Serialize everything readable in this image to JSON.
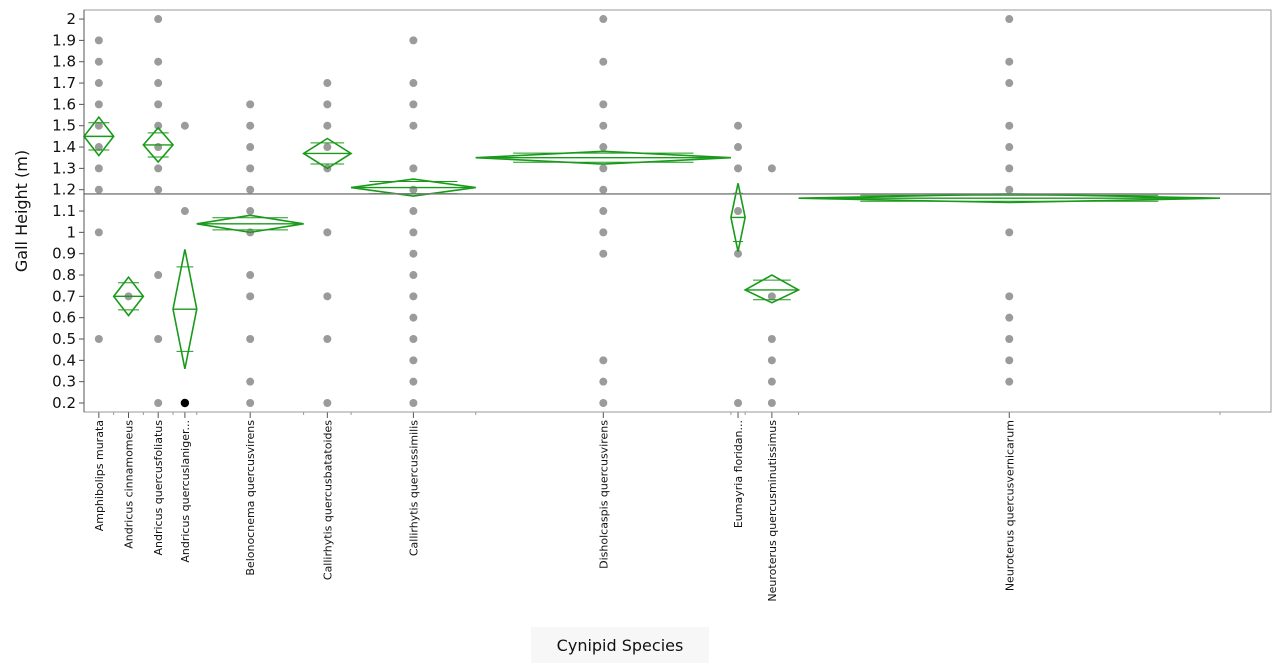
{
  "colors": {
    "diamond": "#1a9a1a",
    "point": "#9b9b9b",
    "highlight_point": "#000000",
    "grand_mean": "#7a7a7a"
  },
  "chart_data": {
    "type": "scatter",
    "subtype": "oneway-means-diamonds",
    "xlabel": "Cynipid Species",
    "ylabel": "Gall Height (m)",
    "ylim": [
      0.15,
      2.05
    ],
    "yticks": [
      0.2,
      0.3,
      0.4,
      0.5,
      0.6,
      0.7,
      0.8,
      0.9,
      1,
      1.1,
      1.2,
      1.3,
      1.4,
      1.5,
      1.6,
      1.7,
      1.8,
      1.9,
      2
    ],
    "ytick_labels": [
      "0.2",
      "0.3",
      "0.4",
      "0.5",
      "0.6",
      "0.7",
      "0.8",
      "0.9",
      "1",
      "1.1",
      "1.2",
      "1.3",
      "1.4",
      "1.5",
      "1.6",
      "1.7",
      "1.8",
      "1.9",
      "2"
    ],
    "grand_mean": 1.18,
    "grid": false,
    "groups": [
      {
        "label": "Amphibolips murata",
        "share": 0.025,
        "mean": 1.45,
        "lower": 1.36,
        "upper": 1.54,
        "points": [
          1.9,
          1.8,
          1.7,
          1.6,
          1.5,
          1.4,
          1.3,
          1.2,
          1.0,
          0.5
        ]
      },
      {
        "label": "Andricus cinnamomeus",
        "share": 0.025,
        "mean": 0.7,
        "lower": 0.61,
        "upper": 0.79,
        "points": [
          0.7
        ]
      },
      {
        "label": "Andricus quercusfoliatus",
        "share": 0.025,
        "mean": 1.41,
        "lower": 1.33,
        "upper": 1.49,
        "points": [
          2.0,
          1.8,
          1.7,
          1.6,
          1.5,
          1.4,
          1.3,
          1.2,
          0.8,
          0.5,
          0.2
        ]
      },
      {
        "label": "Andricus quercuslaniger...",
        "share": 0.02,
        "mean": 0.64,
        "lower": 0.36,
        "upper": 0.92,
        "points": [
          1.5,
          1.1
        ],
        "highlight_points": [
          0.2
        ]
      },
      {
        "label": "Belonocnema quercusvirens",
        "share": 0.09,
        "mean": 1.04,
        "lower": 1.0,
        "upper": 1.08,
        "points": [
          1.6,
          1.5,
          1.4,
          1.3,
          1.2,
          1.1,
          1.0,
          0.8,
          0.7,
          0.5,
          0.3,
          0.2
        ]
      },
      {
        "label": "Callirhytis quercusbatatoides",
        "share": 0.04,
        "mean": 1.37,
        "lower": 1.3,
        "upper": 1.44,
        "points": [
          1.7,
          1.6,
          1.5,
          1.4,
          1.3,
          1.0,
          0.7,
          0.5,
          0.2
        ]
      },
      {
        "label": "Callirhytis quercussimilis",
        "share": 0.105,
        "mean": 1.21,
        "lower": 1.17,
        "upper": 1.25,
        "points": [
          1.9,
          1.7,
          1.6,
          1.5,
          1.3,
          1.2,
          1.1,
          1.0,
          0.9,
          0.8,
          0.7,
          0.6,
          0.5,
          0.4,
          0.3,
          0.2
        ]
      },
      {
        "label": "Disholcaspis quercusvirens",
        "share": 0.215,
        "mean": 1.35,
        "lower": 1.32,
        "upper": 1.38,
        "points": [
          2.0,
          1.8,
          1.6,
          1.5,
          1.4,
          1.3,
          1.2,
          1.1,
          1.0,
          0.9,
          0.4,
          0.3,
          0.2
        ]
      },
      {
        "label": "Eumayria floridan...",
        "share": 0.012,
        "mean": 1.07,
        "lower": 0.91,
        "upper": 1.23,
        "points": [
          1.5,
          1.4,
          1.3,
          1.1,
          0.9,
          0.2
        ]
      },
      {
        "label": "Neuroterus quercusminutissimus",
        "share": 0.045,
        "mean": 0.73,
        "lower": 0.67,
        "upper": 0.8,
        "points": [
          1.3,
          0.7,
          0.5,
          0.4,
          0.3,
          0.2
        ]
      },
      {
        "label": "Neuroterus quercusvernicarum",
        "share": 0.355,
        "mean": 1.16,
        "lower": 1.14,
        "upper": 1.18,
        "points": [
          2.0,
          1.8,
          1.7,
          1.5,
          1.4,
          1.3,
          1.2,
          1.0,
          0.7,
          0.6,
          0.5,
          0.4,
          0.3
        ]
      }
    ]
  }
}
